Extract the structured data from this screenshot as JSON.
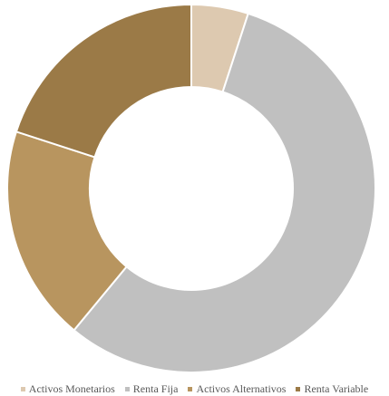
{
  "chart_data": {
    "type": "pie",
    "donut": true,
    "title": "",
    "categories": [
      "Activos Monetarios",
      "Renta Fija",
      "Activos Alternativos",
      "Renta Variable"
    ],
    "values": [
      5,
      56,
      19,
      20
    ],
    "colors": [
      "#DDC9B0",
      "#C0C0C0",
      "#B8955F",
      "#9B7A47"
    ],
    "legend_position": "bottom",
    "data_labels": false
  }
}
